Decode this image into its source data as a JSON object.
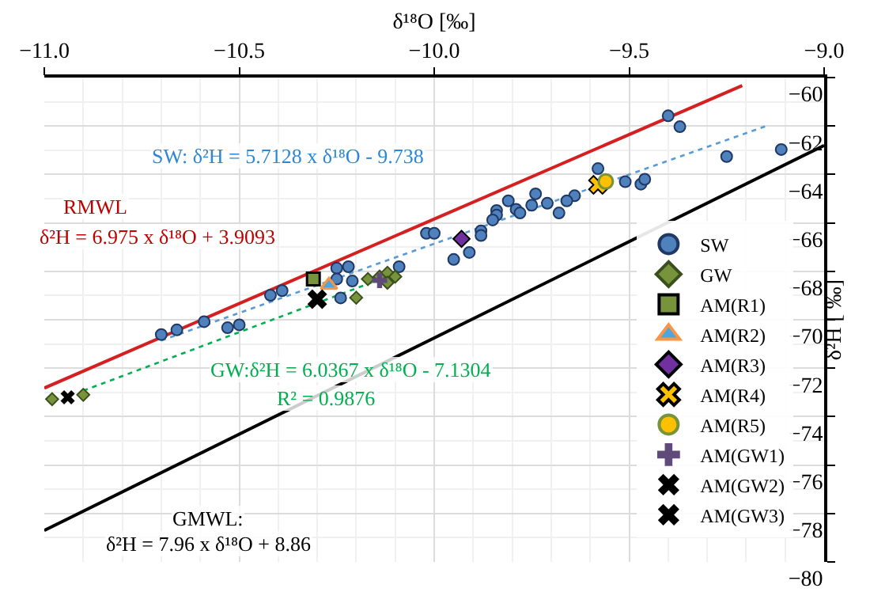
{
  "chart_data": {
    "type": "scatter",
    "xlabel": "δ¹⁸O [‰]",
    "ylabel": "δ²H [ ‰]",
    "xlim": [
      -11,
      -9
    ],
    "ylim": [
      -80,
      -60
    ],
    "xticks": [
      {
        "value": -11,
        "label": "−11.0"
      },
      {
        "value": -10.5,
        "label": "−10.5"
      },
      {
        "value": -10,
        "label": "−10.0"
      },
      {
        "value": -9.5,
        "label": "−9.5"
      },
      {
        "value": -9,
        "label": "−9.0"
      }
    ],
    "yticks": [
      {
        "value": -80,
        "label": "−80"
      },
      {
        "value": -78,
        "label": "−78"
      },
      {
        "value": -76,
        "label": "−76"
      },
      {
        "value": -74,
        "label": "−74"
      },
      {
        "value": -72,
        "label": "−72"
      },
      {
        "value": -70,
        "label": "−70"
      },
      {
        "value": -68,
        "label": "−68"
      },
      {
        "value": -66,
        "label": "−66"
      },
      {
        "value": -64,
        "label": "−64"
      },
      {
        "value": -62,
        "label": "−62"
      },
      {
        "value": -60,
        "label": "−60"
      }
    ],
    "grid": true,
    "legend": "bottom right",
    "series": [
      {
        "type": "line",
        "color": "#d42020",
        "line_style": "solid",
        "x": [
          -11,
          -9.21
        ],
        "values": [
          -72.82,
          -60.33
        ]
      },
      {
        "type": "line",
        "color": "#000000",
        "line_style": "solid",
        "x": [
          -11,
          -9
        ],
        "values": [
          -78.7,
          -62.8
        ]
      },
      {
        "type": "line",
        "color": "#5b9bd5",
        "line_style": "dotted",
        "x": [
          -10.7,
          -9.14
        ],
        "values": [
          -70.86,
          -61.95
        ]
      },
      {
        "type": "line",
        "color": "#00b050",
        "line_style": "dotted",
        "x": [
          -10.9,
          -10.16
        ],
        "values": [
          -72.93,
          -68.46
        ]
      },
      {
        "name": "SW",
        "color": "#4f81bd",
        "marker": "circle",
        "x": [
          -9.4,
          -9.37,
          -9.25,
          -9.11,
          -9.58,
          -9.51,
          -9.47,
          -9.46,
          -9.74,
          -9.81,
          -9.64,
          -9.66,
          -9.79,
          -9.75,
          -9.71,
          -9.78,
          -9.68,
          -9.84,
          -9.84,
          -9.85,
          -10.02,
          -10.0,
          -9.88,
          -9.88,
          -9.95,
          -9.91,
          -10.09,
          -10.25,
          -10.22,
          -10.25,
          -10.21,
          -10.24,
          -10.42,
          -10.39,
          -10.59,
          -10.53,
          -10.5,
          -10.7,
          -10.66
        ],
        "values": [
          -61.58,
          -62.03,
          -63.26,
          -62.97,
          -63.76,
          -64.3,
          -64.4,
          -64.2,
          -64.8,
          -65.09,
          -64.88,
          -65.09,
          -65.44,
          -65.27,
          -65.19,
          -65.59,
          -65.59,
          -65.49,
          -65.68,
          -65.88,
          -66.43,
          -66.43,
          -66.33,
          -66.52,
          -67.51,
          -67.22,
          -67.81,
          -67.87,
          -67.81,
          -68.32,
          -68.4,
          -69.1,
          -68.99,
          -68.8,
          -70.08,
          -70.33,
          -70.21,
          -70.61,
          -70.42
        ]
      },
      {
        "name": "GW",
        "color": "#77933c",
        "marker": "diamond",
        "x": [
          -10.98,
          -10.9,
          -10.17,
          -10.14,
          -10.12,
          -10.1,
          -10.12,
          -10.2
        ],
        "values": [
          -73.28,
          -73.1,
          -68.32,
          -68.22,
          -68.06,
          -68.22,
          -68.47,
          -69.09
        ]
      },
      {
        "name": "AM(R1)",
        "color": "#77933c",
        "marker": "square",
        "x": [
          -10.31
        ],
        "values": [
          -68.32
        ]
      },
      {
        "name": "AM(R2)",
        "color": "#4ea6dc",
        "marker": "triangle",
        "x": [
          -10.27
        ],
        "values": [
          -68.57
        ]
      },
      {
        "name": "AM(R3)",
        "color": "#7030a0",
        "marker": "diamond",
        "x": [
          -9.93
        ],
        "values": [
          -66.66
        ]
      },
      {
        "name": "AM(R4)",
        "color": "#ffc000",
        "marker": "cross",
        "x": [
          -9.58
        ],
        "values": [
          -64.43
        ]
      },
      {
        "name": "AM(R5)",
        "color": "#ffc000",
        "marker": "circle",
        "x": [
          -9.56
        ],
        "values": [
          -64.29
        ]
      },
      {
        "name": "AM(GW1)",
        "color": "#604a7b",
        "marker": "cross",
        "x": [
          -10.14
        ],
        "values": [
          -68.38
        ]
      },
      {
        "name": "AM(GW2)",
        "color": "#000000",
        "marker": "cross",
        "x": [
          -10.94
        ],
        "values": [
          -73.2
        ]
      },
      {
        "name": "AM(GW3)",
        "color": "#000000",
        "marker": "cross",
        "x": [
          -10.3
        ],
        "values": [
          -69.15
        ]
      }
    ],
    "annotations": [
      "SW: δ²H = 5.7128 x δ¹⁸O - 9.738",
      "RMWL",
      "δ²H = 6.975 x δ¹⁸O + 3.9093",
      "GW:δ²H = 6.0367 x δ¹⁸O - 7.1304",
      "R² = 0.9876",
      "GMWL:",
      "δ²H = 7.96 x δ¹⁸O + 8.86"
    ]
  }
}
